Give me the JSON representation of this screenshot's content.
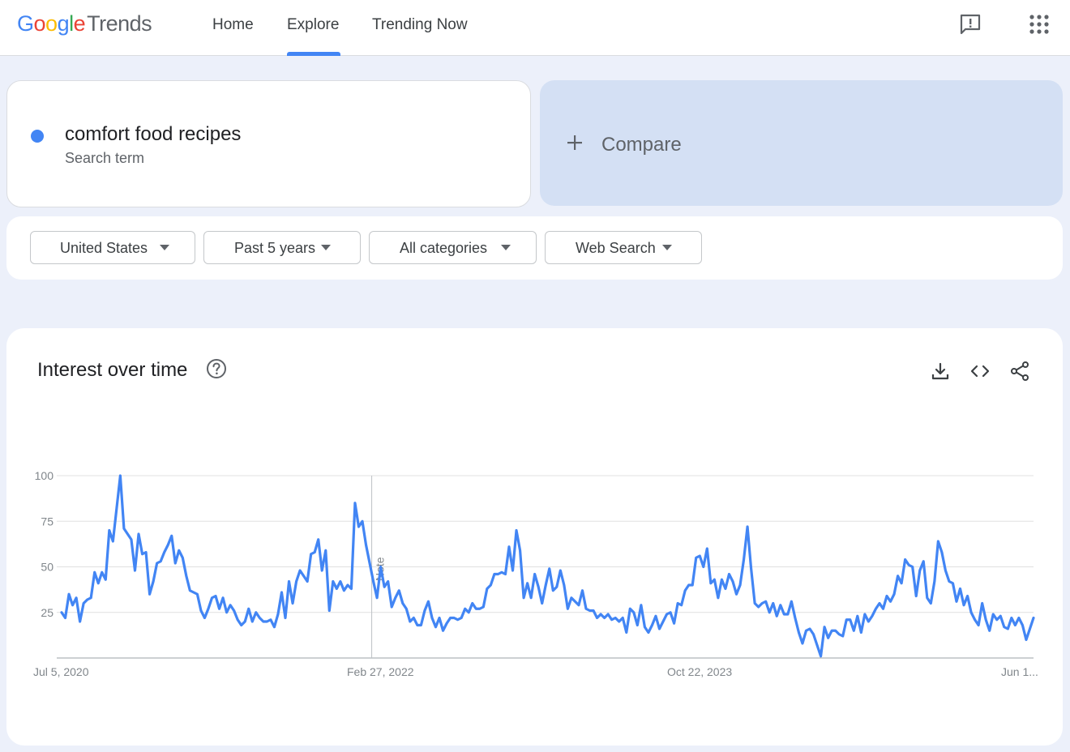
{
  "header": {
    "logo": {
      "g1": "G",
      "o1": "o",
      "o2": "o",
      "g2": "g",
      "l": "l",
      "e": "e",
      "trends": "Trends"
    },
    "tabs": [
      {
        "label": "Home"
      },
      {
        "label": "Explore"
      },
      {
        "label": "Trending Now"
      }
    ],
    "active_tab": "Explore",
    "icons": [
      "feedback-icon",
      "apps-grid-icon"
    ]
  },
  "search_term": {
    "term": "comfort food recipes",
    "subtitle": "Search term",
    "dot_color": "#4285f4"
  },
  "compare": {
    "label": "Compare",
    "icon": "plus-icon"
  },
  "filters": [
    {
      "label": "United States"
    },
    {
      "label": "Past 5 years"
    },
    {
      "label": "All categories"
    },
    {
      "label": "Web Search"
    }
  ],
  "chart_section": {
    "title": "Interest over time",
    "icons": [
      "help-icon",
      "download-icon",
      "embed-code-icon",
      "share-icon"
    ],
    "note_label": "Note"
  },
  "chart_data": {
    "type": "line",
    "x_tick_labels": [
      "Jul 5, 2020",
      "Feb 27, 2022",
      "Oct 22, 2023",
      "Jun 1..."
    ],
    "y_ticks": [
      25,
      50,
      75,
      100
    ],
    "ylim": [
      0,
      100
    ],
    "grid": true,
    "line_color": "#4285f4",
    "note_at_index": 85,
    "series": [
      {
        "values": [
          25,
          22,
          35,
          29,
          33,
          20,
          30,
          32,
          33,
          47,
          41,
          47,
          43,
          70,
          64,
          82,
          100,
          71,
          68,
          65,
          48,
          68,
          57,
          58,
          35,
          42,
          52,
          53,
          58,
          62,
          67,
          52,
          59,
          55,
          45,
          37,
          36,
          35,
          26,
          22,
          27,
          33,
          34,
          27,
          33,
          25,
          29,
          26,
          21,
          18,
          20,
          27,
          20,
          25,
          22,
          20,
          20,
          21,
          17,
          24,
          36,
          22,
          42,
          30,
          42,
          48,
          45,
          42,
          57,
          58,
          65,
          48,
          59,
          26,
          42,
          38,
          42,
          37,
          40,
          38,
          85,
          72,
          75,
          62,
          52,
          42,
          33,
          50,
          39,
          42,
          28,
          33,
          37,
          30,
          27,
          20,
          22,
          18,
          18,
          26,
          31,
          22,
          17,
          22,
          15,
          19,
          22,
          22,
          21,
          22,
          27,
          25,
          30,
          27,
          27,
          28,
          38,
          40,
          46,
          46,
          47,
          46,
          61,
          48,
          70,
          59,
          33,
          41,
          33,
          46,
          39,
          30,
          40,
          49,
          37,
          39,
          48,
          40,
          27,
          33,
          31,
          29,
          37,
          27,
          26,
          26,
          22,
          24,
          22,
          24,
          21,
          22,
          20,
          22,
          14,
          27,
          25,
          18,
          29,
          17,
          14,
          18,
          23,
          16,
          20,
          24,
          25,
          19,
          30,
          29,
          37,
          40,
          40,
          55,
          56,
          50,
          60,
          41,
          43,
          33,
          43,
          38,
          46,
          42,
          35,
          40,
          54,
          72,
          49,
          30,
          28,
          30,
          31,
          25,
          30,
          23,
          29,
          24,
          24,
          31,
          22,
          14,
          8,
          15,
          16,
          13,
          7,
          1,
          17,
          11,
          15,
          15,
          13,
          12,
          21,
          21,
          15,
          23,
          14,
          24,
          20,
          23,
          27,
          30,
          27,
          34,
          31,
          35,
          45,
          41,
          54,
          51,
          50,
          34,
          48,
          53,
          33,
          30,
          42,
          64,
          58,
          48,
          42,
          41,
          31,
          38,
          29,
          34,
          25,
          21,
          18,
          30,
          21,
          15,
          24,
          21,
          23,
          17,
          16,
          22,
          18,
          22,
          18,
          10,
          16,
          22
        ]
      }
    ]
  }
}
